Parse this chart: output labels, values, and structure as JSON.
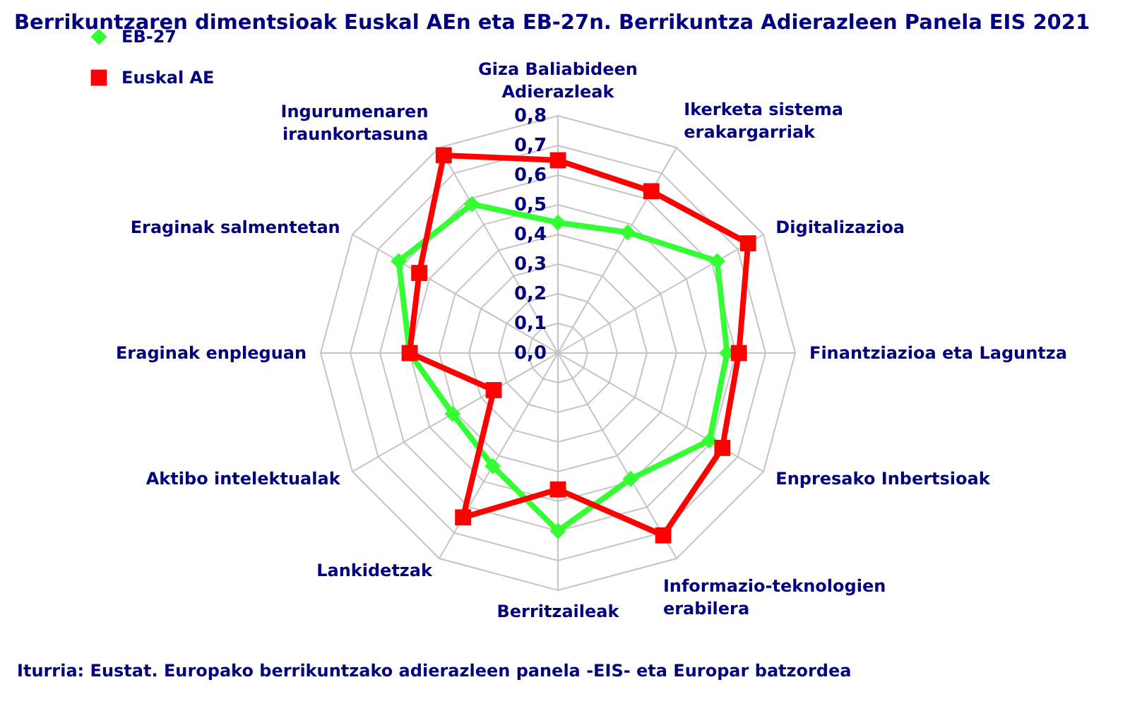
{
  "chart_data": {
    "type": "radar",
    "title": "Berrikuntzaren dimentsioak Euskal AEn eta EB-27n. Berrikuntza Adierazleen Panela EIS 2021",
    "categories": [
      "Giza Baliabideen Adierazleak",
      "Ikerketa sistema erakargarriak",
      "Digitalizazioa",
      "Finantziazioa eta Laguntza",
      "Enpresako Inbertsioak",
      "Informazio-teknologien erabilera",
      "Berritzaileak",
      "Lankidetzak",
      "Aktibo intelektualak",
      "Eraginak enpleguan",
      "Eraginak salmentetan",
      "Ingurumenaren iraunkortasuna"
    ],
    "series": [
      {
        "name": "EB-27",
        "color": "#33ff33",
        "marker": "diamond",
        "values": [
          0.44,
          0.47,
          0.62,
          0.57,
          0.59,
          0.49,
          0.6,
          0.44,
          0.41,
          0.5,
          0.62,
          0.58
        ]
      },
      {
        "name": "Euskal AE",
        "color": "#ff0000",
        "marker": "square",
        "values": [
          0.65,
          0.63,
          0.74,
          0.61,
          0.64,
          0.71,
          0.46,
          0.64,
          0.25,
          0.5,
          0.54,
          0.77
        ]
      }
    ],
    "ylim": [
      0,
      0.8
    ],
    "yticks": [
      {
        "value": 0,
        "label": "0,0"
      },
      {
        "value": 0.1,
        "label": "0,1"
      },
      {
        "value": 0.2,
        "label": "0,2"
      },
      {
        "value": 0.3,
        "label": "0,3"
      },
      {
        "value": 0.4,
        "label": "0,4"
      },
      {
        "value": 0.5,
        "label": "0,5"
      },
      {
        "value": 0.6,
        "label": "0,6"
      },
      {
        "value": 0.7,
        "label": "0,7"
      },
      {
        "value": 0.8,
        "label": "0,8"
      }
    ],
    "grid": true,
    "legend": "top left",
    "line_style": "solid",
    "annotations": [
      "Iturria: Eustat. Europako berrikuntzako adierazleen panela -EIS- eta Europar batzordea"
    ]
  }
}
